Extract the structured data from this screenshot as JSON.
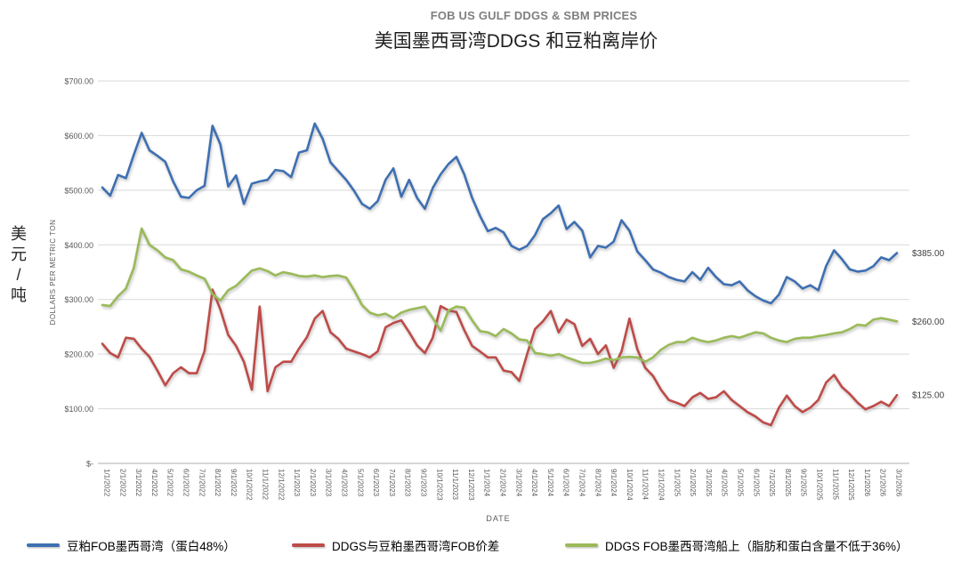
{
  "title": {
    "en": "FOB US GULF DDGS & SBM PRICES",
    "zh": "美国墨西哥湾DDGS 和豆粕离岸价"
  },
  "y_axis": {
    "title": "DOLLARS PER METRIC TON",
    "unit_cn": "美元/吨",
    "tick_labels": [
      "$700.00",
      "$600.00",
      "$500.00",
      "$400.00",
      "$300.00",
      "$200.00",
      "$100.00",
      "$-"
    ],
    "min": 0,
    "max": 700,
    "step": 100
  },
  "x_axis": {
    "title": "DATE",
    "labels": [
      "1/1/2022",
      "2/1/2022",
      "3/1/2022",
      "4/1/2022",
      "5/1/2022",
      "6/1/2022",
      "7/1/2022",
      "8/1/2022",
      "9/1/2022",
      "10/1/2022",
      "11/1/2022",
      "12/1/2022",
      "1/1/2023",
      "2/1/2023",
      "3/1/2023",
      "4/1/2023",
      "5/1/2023",
      "6/1/2023",
      "7/1/2023",
      "8/1/2023",
      "9/1/2023",
      "10/1/2023",
      "11/1/2023",
      "12/1/2023",
      "1/1/2024",
      "2/1/2024",
      "3/1/2024",
      "4/1/2024",
      "5/1/2024",
      "6/1/2024",
      "7/1/2024",
      "8/1/2024",
      "9/1/2024",
      "10/1/2024",
      "11/1/2024",
      "12/1/2024",
      "1/1/2025",
      "2/1/2025",
      "3/1/2025",
      "4/1/2025",
      "5/1/2025",
      "6/1/2025",
      "7/1/2025",
      "8/1/2025",
      "9/1/2025",
      "10/1/2025",
      "11/1/2025",
      "12/1/2025",
      "1/1/2026",
      "2/1/2026",
      "3/1/2026"
    ]
  },
  "colors": {
    "sbm": "#3E6FB2",
    "spread": "#BE4B48",
    "ddgs": "#9ABA58",
    "grid": "#D9D9D9",
    "axis": "#BFBFBF",
    "tick_text": "#595959",
    "title_en": "#7F7F7F",
    "end_label": "#404040"
  },
  "legend": [
    {
      "id": "sbm",
      "label": "豆粕FOB墨西哥湾（蛋白48%）"
    },
    {
      "id": "spread",
      "label": "DDGS与豆粕墨西哥湾FOB价差"
    },
    {
      "id": "ddgs",
      "label": "DDGS FOB墨西哥湾船上（脂肪和蛋白含量不低于36%）"
    }
  ],
  "end_labels": [
    {
      "series": "sbm",
      "text": "$385.00",
      "value": 385
    },
    {
      "series": "ddgs",
      "text": "$260.00",
      "value": 260
    },
    {
      "series": "spread",
      "text": "$125.00",
      "value": 125
    }
  ],
  "chart_data": {
    "type": "line",
    "title": "FOB US GULF DDGS & SBM PRICES / 美国墨西哥湾DDGS 和豆粕离岸价",
    "xlabel": "DATE",
    "ylabel": "DOLLARS PER METRIC TON",
    "ylim": [
      0,
      700
    ],
    "grid": "horizontal",
    "legend_position": "bottom",
    "x_range": [
      "1/1/2022",
      "3/15/2026"
    ],
    "samples_per_month": 2,
    "categories_monthly_count": 51,
    "series": [
      {
        "id": "sbm",
        "name": "豆粕FOB墨西哥湾（蛋白48%）",
        "color": "#3E6FB2",
        "end_value_label": "$385.00",
        "values": [
          505,
          490,
          528,
          522,
          565,
          605,
          573,
          563,
          552,
          516,
          488,
          486,
          500,
          508,
          618,
          584,
          507,
          527,
          475,
          512,
          516,
          519,
          537,
          535,
          524,
          569,
          573,
          622,
          594,
          551,
          535,
          519,
          499,
          475,
          466,
          480,
          519,
          540,
          488,
          519,
          486,
          466,
          504,
          529,
          548,
          561,
          529,
          486,
          453,
          425,
          431,
          423,
          398,
          391,
          398,
          418,
          447,
          458,
          472,
          429,
          442,
          426,
          377,
          398,
          395,
          406,
          445,
          426,
          388,
          372,
          355,
          349,
          341,
          336,
          333,
          350,
          336,
          358,
          341,
          328,
          326,
          333,
          317,
          306,
          298,
          293,
          309,
          341,
          333,
          320,
          326,
          317,
          361,
          390,
          374,
          355,
          351,
          353,
          361,
          377,
          372,
          385
        ]
      },
      {
        "id": "spread",
        "name": "DDGS与豆粕墨西哥湾FOB价差",
        "color": "#BE4B48",
        "end_value_label": "$125.00",
        "values": [
          219,
          202,
          194,
          230,
          228,
          210,
          195,
          170,
          143,
          165,
          176,
          165,
          165,
          206,
          318,
          282,
          235,
          215,
          186,
          135,
          287,
          132,
          176,
          186,
          186,
          210,
          231,
          265,
          279,
          240,
          228,
          210,
          205,
          200,
          194,
          205,
          249,
          257,
          262,
          240,
          216,
          202,
          230,
          288,
          280,
          277,
          244,
          215,
          205,
          194,
          194,
          170,
          167,
          151,
          200,
          246,
          260,
          279,
          240,
          263,
          255,
          215,
          228,
          200,
          216,
          175,
          205,
          265,
          209,
          175,
          160,
          135,
          116,
          111,
          105,
          121,
          129,
          118,
          121,
          132,
          116,
          105,
          94,
          86,
          75,
          70,
          102,
          124,
          105,
          94,
          102,
          116,
          148,
          162,
          140,
          127,
          111,
          99,
          105,
          113,
          105,
          125
        ]
      },
      {
        "id": "ddgs",
        "name": "DDGS FOB墨西哥湾船上（脂肪和蛋白含量不低于36%）",
        "color": "#9ABA58",
        "end_value_label": "$260.00",
        "values": [
          290,
          288,
          306,
          320,
          358,
          430,
          400,
          390,
          377,
          372,
          355,
          351,
          344,
          338,
          310,
          298,
          317,
          325,
          339,
          353,
          357,
          352,
          344,
          350,
          347,
          343,
          342,
          344,
          341,
          343,
          344,
          340,
          317,
          290,
          276,
          271,
          274,
          266,
          276,
          281,
          284,
          287,
          266,
          243,
          280,
          287,
          285,
          262,
          242,
          240,
          233,
          246,
          238,
          227,
          225,
          202,
          200,
          197,
          200,
          194,
          189,
          184,
          184,
          187,
          192,
          189,
          194,
          195,
          194,
          186,
          194,
          208,
          217,
          222,
          222,
          230,
          225,
          222,
          225,
          230,
          233,
          230,
          235,
          240,
          238,
          230,
          225,
          222,
          228,
          230,
          230,
          233,
          235,
          238,
          240,
          246,
          254,
          252,
          263,
          266,
          263,
          260
        ]
      }
    ]
  }
}
